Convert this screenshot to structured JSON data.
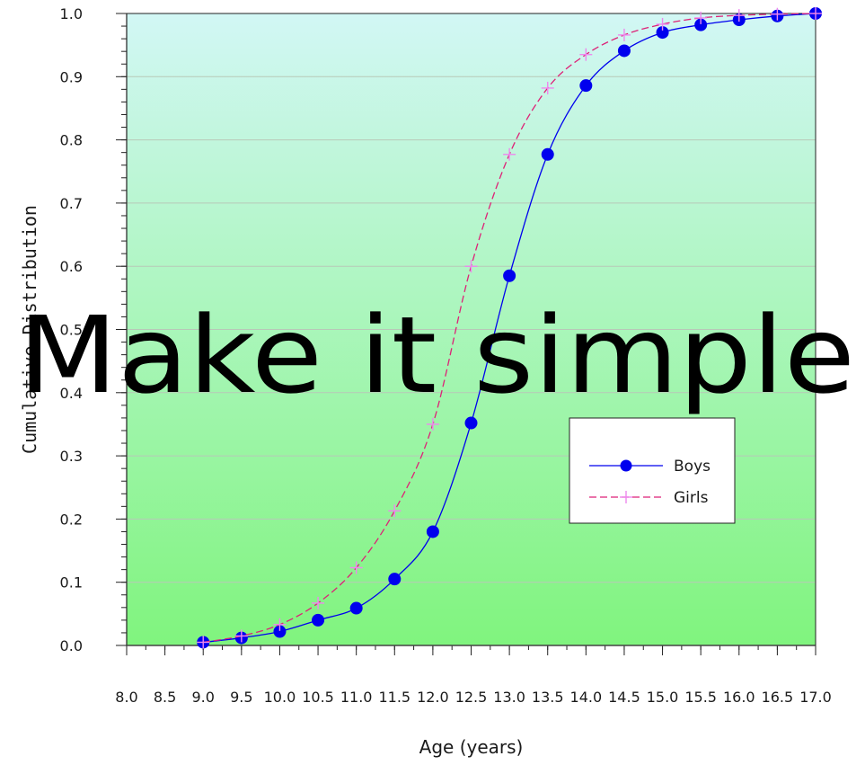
{
  "chart_data": {
    "type": "line",
    "title": "",
    "xlabel": "Age (years)",
    "ylabel": "Cumulative Distribution",
    "xlim": [
      8.0,
      17.0
    ],
    "ylim": [
      0.0,
      1.0
    ],
    "x_ticks": [
      "8.0",
      "8.5",
      "9.0",
      "9.5",
      "10.0",
      "10.5",
      "11.0",
      "11.5",
      "12.0",
      "12.5",
      "13.0",
      "13.5",
      "14.0",
      "14.5",
      "15.0",
      "15.5",
      "16.0",
      "16.5",
      "17.0"
    ],
    "y_ticks": [
      "0.0",
      "0.1",
      "0.2",
      "0.3",
      "0.4",
      "0.5",
      "0.6",
      "0.7",
      "0.8",
      "0.9",
      "1.0"
    ],
    "grid": true,
    "legend_position": "right",
    "series": [
      {
        "name": "Boys",
        "color": "#0000ee",
        "marker": "circle",
        "line_style": "solid",
        "x": [
          9.0,
          9.5,
          10.0,
          10.5,
          11.0,
          11.5,
          12.0,
          12.5,
          13.0,
          13.5,
          14.0,
          14.5,
          15.0,
          15.5,
          16.0,
          16.5,
          17.0
        ],
        "y": [
          0.005,
          0.012,
          0.022,
          0.04,
          0.059,
          0.105,
          0.18,
          0.352,
          0.585,
          0.777,
          0.886,
          0.941,
          0.97,
          0.982,
          0.99,
          0.996,
          1.0
        ]
      },
      {
        "name": "Girls",
        "color": "#dd2277",
        "marker_color": "#ee88ee",
        "marker": "plus",
        "line_style": "dashed",
        "x": [
          9.0,
          9.5,
          10.0,
          10.5,
          11.0,
          11.5,
          12.0,
          12.5,
          13.0,
          13.5,
          14.0,
          14.5,
          15.0,
          15.5,
          16.0,
          16.5,
          17.0
        ],
        "y": [
          0.005,
          0.015,
          0.033,
          0.067,
          0.123,
          0.213,
          0.35,
          0.6,
          0.777,
          0.882,
          0.935,
          0.966,
          0.983,
          0.993,
          0.997,
          0.999,
          1.0
        ]
      }
    ],
    "background_gradient": [
      "#d2f7f5",
      "#80f47e"
    ]
  },
  "overlay_text": "Make it simple"
}
